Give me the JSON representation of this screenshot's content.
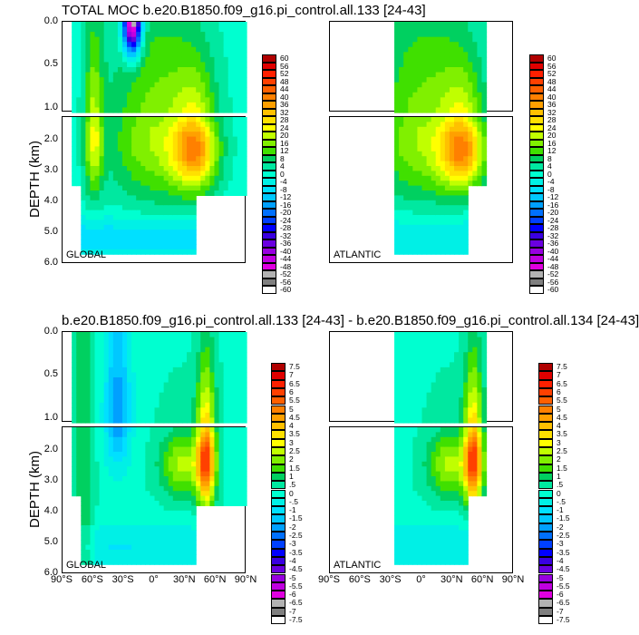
{
  "top_title": "TOTAL MOC b.e20.B1850.f09_g16.pi_control.all.133 [24-43]",
  "bottom_title": "b.e20.B1850.f09_g16.pi_control.all.133 [24-43] - b.e20.B1850.f09_g16.pi_control.all.134 [24-43]",
  "ylabel": "DEPTH (km)",
  "region_labels": {
    "global": "GLOBAL",
    "atlantic": "ATLANTIC"
  },
  "yticks_upper": [
    "0.0",
    "0.5",
    "1.0"
  ],
  "yticks_lower": [
    "2.0",
    "3.0",
    "4.0",
    "5.0",
    "6.0"
  ],
  "xticks": [
    "90°S",
    "60°S",
    "30°S",
    "0°",
    "30°N",
    "60°N",
    "90°N"
  ],
  "colors": {
    "palette": [
      "#ffffff",
      "#7f7f7f",
      "#b2b2b2",
      "#e000e0",
      "#c000e0",
      "#9800e0",
      "#6a00e0",
      "#3a00e0",
      "#0000ff",
      "#0040ff",
      "#0070ff",
      "#00a0ff",
      "#00c8ff",
      "#00e0ff",
      "#00f0e6",
      "#00ffd0",
      "#00e8a0",
      "#00d060",
      "#40e000",
      "#80f000",
      "#c0ff00",
      "#ffff00",
      "#ffe000",
      "#ffc000",
      "#ffa000",
      "#ff8000",
      "#ff6000",
      "#ff4000",
      "#ff2000",
      "#e00000",
      "#b00000"
    ]
  },
  "chart_data": [
    {
      "type": "heatmap",
      "title": "TOTAL MOC b.e20.B1850.f09_g16.pi_control.all.133 [24-43]",
      "ylabel": "DEPTH (km)",
      "colorbar_levels": [
        "60",
        "56",
        "52",
        "48",
        "44",
        "40",
        "36",
        "32",
        "28",
        "24",
        "20",
        "16",
        "12",
        "8",
        "4",
        "0",
        "-4",
        "-8",
        "-12",
        "-16",
        "-20",
        "-24",
        "-28",
        "-32",
        "-36",
        "-40",
        "-44",
        "-48",
        "-52",
        "-56",
        "-60"
      ],
      "panels": [
        {
          "region": "GLOBAL",
          "xlim": [
            -90,
            90
          ],
          "ylim": [
            6.0,
            0.0
          ]
        },
        {
          "region": "ATLANTIC",
          "xlim": [
            -90,
            90
          ],
          "ylim": [
            6.0,
            0.0
          ]
        }
      ]
    },
    {
      "type": "heatmap",
      "title": "b.e20.B1850.f09_g16.pi_control.all.133 [24-43] - b.e20.B1850.f09_g16.pi_control.all.134 [24-43]",
      "ylabel": "DEPTH (km)",
      "colorbar_levels": [
        "7.5",
        "7",
        "6.5",
        "6",
        "5.5",
        "5",
        "4.5",
        "4",
        "3.5",
        "3",
        "2.5",
        "2",
        "1.5",
        "1",
        ".5",
        "0",
        "-.5",
        "-1",
        "-1.5",
        "-2",
        "-2.5",
        "-3",
        "-3.5",
        "-4",
        "-4.5",
        "-5",
        "-5.5",
        "-6",
        "-6.5",
        "-7",
        "-7.5"
      ],
      "panels": [
        {
          "region": "GLOBAL",
          "xlim": [
            -90,
            90
          ],
          "ylim": [
            6.0,
            0.0
          ]
        },
        {
          "region": "ATLANTIC",
          "xlim": [
            -90,
            90
          ],
          "ylim": [
            6.0,
            0.0
          ]
        }
      ]
    }
  ]
}
